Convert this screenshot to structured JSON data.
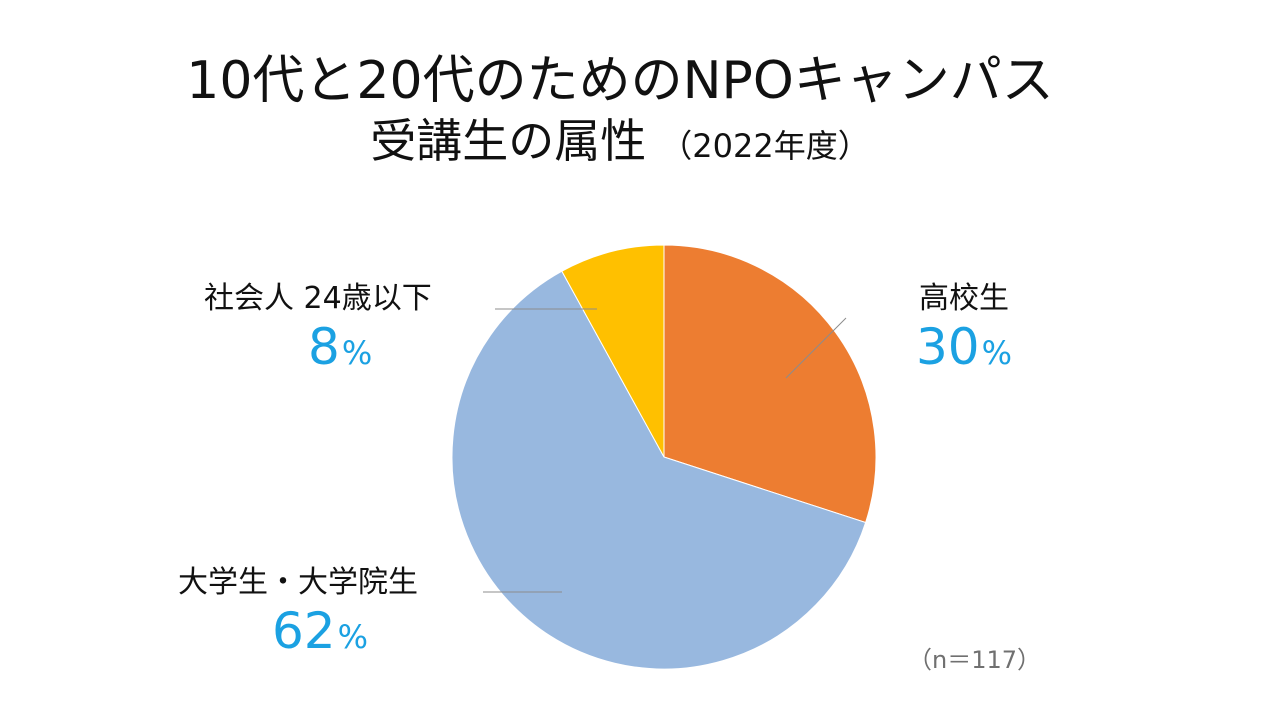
{
  "chart_data": {
    "type": "pie",
    "title_line1": "10代と20代のためのNPOキャンパス",
    "title_line2": "受講生の属性",
    "title_year": "（2022年度）",
    "slices": [
      {
        "id": "hs",
        "label": "高校生",
        "value": 30,
        "display": "30",
        "unit": "%",
        "color": "#ED7D31"
      },
      {
        "id": "univ",
        "label": "大学生・大学院生",
        "value": 62,
        "display": "62",
        "unit": "%",
        "color": "#98B8DF"
      },
      {
        "id": "sj",
        "label": "社会人 24歳以下",
        "value": 8,
        "display": "8",
        "unit": "%",
        "color": "#FFC000"
      }
    ],
    "start_angle": "12 o'clock",
    "direction": "clockwise",
    "label_color": "#1BA1E2",
    "note": "（n＝117）"
  }
}
